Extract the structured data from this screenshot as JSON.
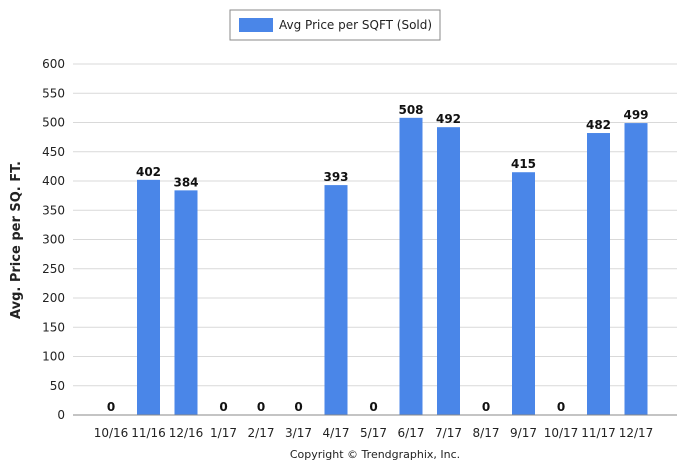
{
  "chart_data": {
    "type": "bar",
    "categories": [
      "10/16",
      "11/16",
      "12/16",
      "1/17",
      "2/17",
      "3/17",
      "4/17",
      "5/17",
      "6/17",
      "7/17",
      "8/17",
      "9/17",
      "10/17",
      "11/17",
      "12/17"
    ],
    "series": [
      {
        "name": "Avg Price per SQFT (Sold)",
        "values": [
          0,
          402,
          384,
          0,
          0,
          0,
          393,
          0,
          508,
          492,
          0,
          415,
          0,
          482,
          499
        ]
      }
    ],
    "ylabel": "Avg. Price per SQ. FT.",
    "xlabel": "",
    "ylim": [
      0,
      600
    ],
    "yticks": [
      0,
      50,
      100,
      150,
      200,
      250,
      300,
      350,
      400,
      450,
      500,
      550,
      600
    ],
    "grid": true,
    "legend_position": "top-center",
    "bar_color": "#4A86E8"
  },
  "footer": {
    "copyright": "Copyright © Trendgraphix, Inc."
  }
}
